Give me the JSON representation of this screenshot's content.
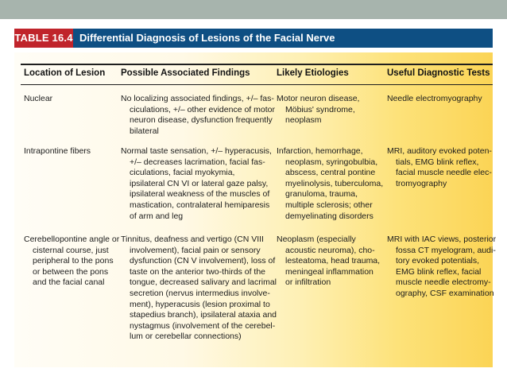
{
  "table": {
    "number": "TABLE 16.4",
    "title": "Differential Diagnosis of Lesions of the Facial Nerve",
    "columns": [
      "Location of Lesion",
      "Possible Associated Findings",
      "Likely Etiologies",
      "Useful Diagnostic Tests"
    ],
    "rows": [
      {
        "location": [
          "Nuclear"
        ],
        "findings": [
          "No localizing associated findings, +/– fas-",
          "ciculations, +/– other evidence of motor",
          "neuron disease, dysfunction frequently",
          "bilateral"
        ],
        "etiologies": [
          "Motor neuron disease,",
          "Möbius' syndrome,",
          "neoplasm"
        ],
        "tests": [
          "Needle electromyography"
        ]
      },
      {
        "location": [
          "Intrapontine fibers"
        ],
        "findings": [
          "Normal taste sensation, +/– hyperacusis,",
          "+/– decreases lacrimation, facial fas-",
          "ciculations, facial myokymia,",
          "ipsilateral CN VI or lateral gaze palsy,",
          "ipsilateral weakness of the muscles of",
          "mastication, contralateral hemiparesis",
          "of arm and leg"
        ],
        "etiologies": [
          "Infarction, hemorrhage,",
          "neoplasm, syringobulbia,",
          "abscess, central pontine",
          "myelinolysis, tuberculoma,",
          "granuloma, trauma,",
          "multiple sclerosis; other",
          "demyelinating disorders"
        ],
        "tests": [
          "MRI, auditory evoked poten-",
          "tials, EMG blink reflex,",
          "facial muscle needle elec-",
          "tromyography"
        ]
      },
      {
        "location": [
          "Cerebellopontine angle or",
          "cisternal course, just",
          "peripheral to the pons",
          "or between the pons",
          "and the facial canal"
        ],
        "findings": [
          "Tinnitus, deafness and vertigo (CN VIII",
          "involvement), facial pain or sensory",
          "dysfunction (CN V involvement), loss of",
          "taste on the anterior two-thirds of the",
          "tongue, decreased salivary and lacrimal",
          "secretion (nervus intermedius involve-",
          "ment), hyperacusis (lesion proximal to",
          "stapedius branch), ipsilateral ataxia and",
          "nystagmus (involvement of the cerebel-",
          "lum or cerebellar connections)"
        ],
        "etiologies": [
          "Neoplasm (especially",
          "acoustic neuroma), cho-",
          "lesteatoma, head trauma,",
          "meningeal inflammation",
          "or infiltration"
        ],
        "tests": [
          "MRI with IAC views, posterior",
          "fossa CT myelogram, audi-",
          "tory evoked potentials,",
          "EMG blink reflex, facial",
          "muscle needle electromy-",
          "ography, CSF examination"
        ]
      }
    ]
  }
}
